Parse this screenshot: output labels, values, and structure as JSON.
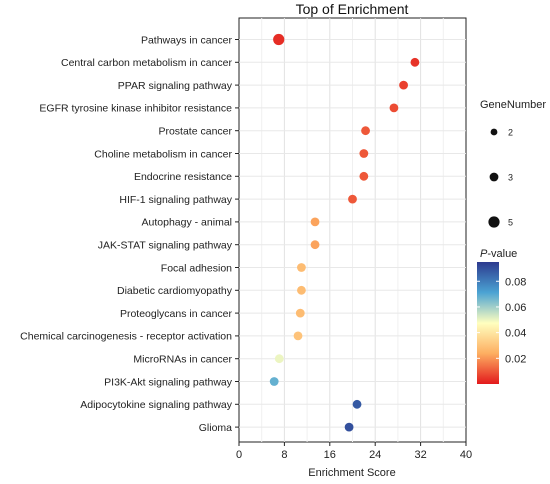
{
  "chart_data": {
    "type": "scatter",
    "title": "Top  of  Enrichment",
    "xlabel": "Enrichment Score",
    "ylabel": "",
    "xlim": [
      0,
      40
    ],
    "xticks": [
      0,
      8,
      16,
      24,
      32,
      40
    ],
    "grid": true,
    "categories": [
      "Pathways in cancer",
      "Central carbon metabolism in cancer",
      "PPAR signaling pathway",
      "EGFR tyrosine kinase inhibitor resistance",
      "Prostate cancer",
      "Choline metabolism in cancer",
      "Endocrine resistance",
      "HIF-1 signaling pathway",
      "Autophagy - animal",
      "JAK-STAT signaling pathway",
      "Focal adhesion",
      "Diabetic cardiomyopathy",
      "Proteoglycans in cancer",
      "Chemical carcinogenesis - receptor activation",
      "MicroRNAs in cancer",
      "PI3K-Akt signaling pathway",
      "Adipocytokine signaling pathway",
      "Glioma"
    ],
    "points": [
      {
        "x": 7.0,
        "gene_number": 5,
        "p_value": 0.003
      },
      {
        "x": 31.0,
        "gene_number": 3,
        "p_value": 0.004
      },
      {
        "x": 29.0,
        "gene_number": 3,
        "p_value": 0.006
      },
      {
        "x": 27.3,
        "gene_number": 3,
        "p_value": 0.008
      },
      {
        "x": 22.3,
        "gene_number": 3,
        "p_value": 0.01
      },
      {
        "x": 22.0,
        "gene_number": 3,
        "p_value": 0.01
      },
      {
        "x": 22.0,
        "gene_number": 3,
        "p_value": 0.01
      },
      {
        "x": 20.0,
        "gene_number": 3,
        "p_value": 0.01
      },
      {
        "x": 13.4,
        "gene_number": 3,
        "p_value": 0.022
      },
      {
        "x": 13.4,
        "gene_number": 3,
        "p_value": 0.022
      },
      {
        "x": 11.0,
        "gene_number": 3,
        "p_value": 0.028
      },
      {
        "x": 11.0,
        "gene_number": 3,
        "p_value": 0.028
      },
      {
        "x": 10.8,
        "gene_number": 3,
        "p_value": 0.028
      },
      {
        "x": 10.4,
        "gene_number": 3,
        "p_value": 0.03
      },
      {
        "x": 7.1,
        "gene_number": 3,
        "p_value": 0.05
      },
      {
        "x": 6.2,
        "gene_number": 3,
        "p_value": 0.068
      },
      {
        "x": 20.8,
        "gene_number": 3,
        "p_value": 0.088
      },
      {
        "x": 19.4,
        "gene_number": 3,
        "p_value": 0.09
      }
    ],
    "size_legend": {
      "title": "GeneNumber",
      "values": [
        2,
        3,
        5
      ]
    },
    "color_legend": {
      "title_p": "P",
      "title_rest": "-value",
      "ticks": [
        0.02,
        0.04,
        0.06,
        0.08
      ],
      "range": [
        0.0,
        0.095
      ]
    },
    "colors": {
      "low": "#e31a1c",
      "midlow": "#fdae61",
      "mid": "#ffffbf",
      "midhigh": "#4ba3d3",
      "high": "#2c3a8f"
    }
  }
}
